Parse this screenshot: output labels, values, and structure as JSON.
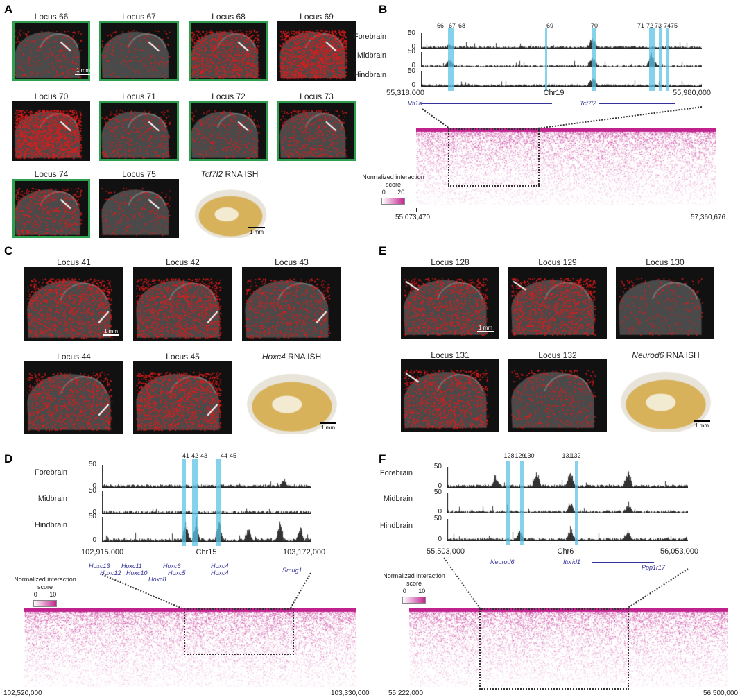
{
  "panels": {
    "A": {
      "label": "A",
      "titles": [
        "Locus 66",
        "Locus 67",
        "Locus 68",
        "Locus 69",
        "Locus 70",
        "Locus 71",
        "Locus 72",
        "Locus 73",
        "Locus 74",
        "Locus 75"
      ],
      "ish_gene": "Tcf7l2",
      "ish_suffix": "RNA ISH",
      "scale": "1 mm"
    },
    "B": {
      "label": "B",
      "tracks": [
        "Forebrain",
        "Midbrain",
        "Hindbrain"
      ],
      "ymax": "50",
      "ymin": "0",
      "loci": [
        "66",
        "67",
        "68",
        "69",
        "70",
        "71",
        "72",
        "73",
        "74",
        "75"
      ],
      "start": "55,318,000",
      "end": "55,980,000",
      "chr": "Chr19",
      "range": [
        55318000,
        55980000
      ],
      "highlights": [
        [
          55382000,
          55395000
        ],
        [
          55611000,
          55615000
        ],
        [
          55722000,
          55731000
        ],
        [
          55856000,
          55869000
        ],
        [
          55879000,
          55886000
        ],
        [
          55896000,
          55899000
        ]
      ],
      "genes": [
        "Vti1a",
        "Tcf7l2"
      ],
      "legend_title": "Normalized interaction score",
      "legend_min": "0",
      "legend_max": "20",
      "hic_start": "55,073,470",
      "hic_end": "57,360,676"
    },
    "C": {
      "label": "C",
      "titles": [
        "Locus 41",
        "Locus 42",
        "Locus 43",
        "Locus 44",
        "Locus 45"
      ],
      "ish_gene": "Hoxc4",
      "ish_suffix": "RNA ISH",
      "scale": "1 mm"
    },
    "D": {
      "label": "D",
      "tracks": [
        "Forebrain",
        "Midbrain",
        "Hindbrain"
      ],
      "ymax": "50",
      "ymin": "0",
      "loci": [
        "41",
        "42",
        "43",
        "44",
        "45"
      ],
      "start": "102,915,000",
      "end": "103,172,000",
      "chr": "Chr15",
      "range": [
        102915000,
        103172000
      ],
      "highlights": [
        [
          103014000,
          103018500
        ],
        [
          103026000,
          103033500
        ],
        [
          103055600,
          103061700
        ]
      ],
      "genes": [
        "Hoxc13",
        "Hoxc11",
        "Hoxc12",
        "Hoxc10",
        "Hoxc6",
        "Hoxc8",
        "Hoxc5",
        "Hoxc4",
        "Hoxc4",
        "Smug1"
      ],
      "legend_title": "Normalized interaction score",
      "legend_min": "0",
      "legend_max": "10",
      "hic_start": "102,520,000",
      "hic_end": "103,330,000"
    },
    "E": {
      "label": "E",
      "titles": [
        "Locus 128",
        "Locus 129",
        "Locus 130",
        "Locus 131",
        "Locus 132"
      ],
      "ish_gene": "Neurod6",
      "ish_suffix": "RNA ISH",
      "scale": "1 mm"
    },
    "F": {
      "label": "F",
      "tracks": [
        "Forebrain",
        "Midbrain",
        "Hindbrain"
      ],
      "ymax": "50",
      "ymin": "0",
      "loci": [
        "128",
        "129",
        "130",
        "131",
        "132"
      ],
      "start": "55,503,000",
      "end": "56,053,000",
      "chr": "Chr6",
      "range": [
        55503000,
        56053000
      ],
      "highlights": [
        [
          55637000,
          55645000
        ],
        [
          55670000,
          55677000
        ],
        [
          55794000,
          55802000
        ]
      ],
      "genes": [
        "Neurod6",
        "Itprid1",
        "Ppp1r17"
      ],
      "legend_title": "Normalized interaction score",
      "legend_min": "0",
      "legend_max": "10",
      "hic_start": "55,222,000",
      "hic_end": "56,500,000"
    }
  },
  "colors": {
    "highlight": "#5bc3e6",
    "hic": "#c2258f",
    "green_frame": "#2e9e4f",
    "gene": "#33339a"
  }
}
